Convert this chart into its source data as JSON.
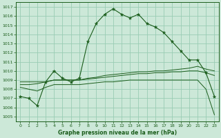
{
  "title": "Graphe pression niveau de la mer (hPa)",
  "bg_color": "#cce8d8",
  "grid_color": "#99ccb3",
  "line_color": "#1a5c1a",
  "xlim": [
    -0.5,
    23.5
  ],
  "ylim": [
    1004.5,
    1017.5
  ],
  "yticks": [
    1005,
    1006,
    1007,
    1008,
    1009,
    1010,
    1011,
    1012,
    1013,
    1014,
    1015,
    1016,
    1017
  ],
  "xticks": [
    0,
    1,
    2,
    3,
    4,
    5,
    6,
    7,
    8,
    9,
    10,
    11,
    12,
    13,
    14,
    15,
    16,
    17,
    18,
    19,
    20,
    21,
    22,
    23
  ],
  "series_main": [
    1007.2,
    1007.0,
    1006.2,
    1008.8,
    1010.0,
    1009.2,
    1008.8,
    1009.2,
    1013.2,
    1015.2,
    1016.2,
    1016.8,
    1016.2,
    1015.8,
    1016.2,
    1015.2,
    1014.8,
    1014.2,
    1013.2,
    1012.2,
    1011.2,
    1011.2,
    1009.8,
    1007.2
  ],
  "series_line1": [
    1008.8,
    1008.8,
    1008.8,
    1008.8,
    1009.0,
    1009.0,
    1009.0,
    1009.0,
    1009.2,
    1009.3,
    1009.5,
    1009.6,
    1009.7,
    1009.8,
    1009.9,
    1009.9,
    1010.0,
    1010.0,
    1010.1,
    1010.2,
    1010.3,
    1010.5,
    1010.2,
    1010.0
  ],
  "series_line2": [
    1008.5,
    1008.5,
    1008.6,
    1008.8,
    1009.0,
    1009.0,
    1009.0,
    1009.0,
    1009.1,
    1009.2,
    1009.3,
    1009.4,
    1009.5,
    1009.6,
    1009.7,
    1009.7,
    1009.8,
    1009.8,
    1009.9,
    1009.9,
    1010.0,
    1010.0,
    1009.8,
    1009.5
  ],
  "series_line3": [
    1008.2,
    1008.0,
    1007.8,
    1008.2,
    1008.5,
    1008.5,
    1008.5,
    1008.5,
    1008.6,
    1008.7,
    1008.8,
    1008.8,
    1008.9,
    1009.0,
    1009.0,
    1009.0,
    1009.0,
    1009.0,
    1009.0,
    1009.0,
    1009.0,
    1009.0,
    1008.0,
    1005.2
  ]
}
